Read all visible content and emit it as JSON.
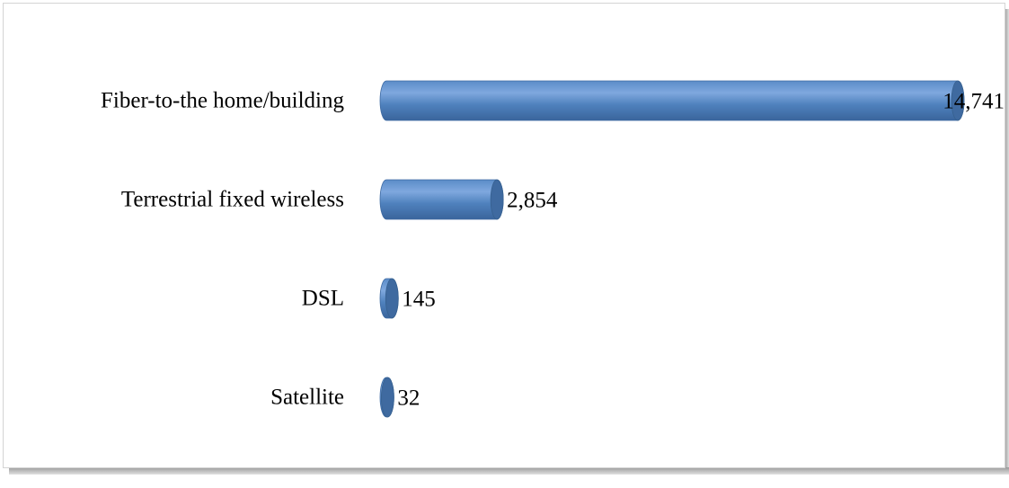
{
  "chart_data": {
    "type": "barh",
    "categories": [
      "Fiber-to-the home/building",
      "Terrestrial fixed wireless",
      "DSL",
      "Satellite"
    ],
    "values": [
      14741,
      2854,
      145,
      32
    ],
    "value_labels": [
      "14,741",
      "2,854",
      "145",
      "32"
    ],
    "color": "#4f81bd"
  }
}
